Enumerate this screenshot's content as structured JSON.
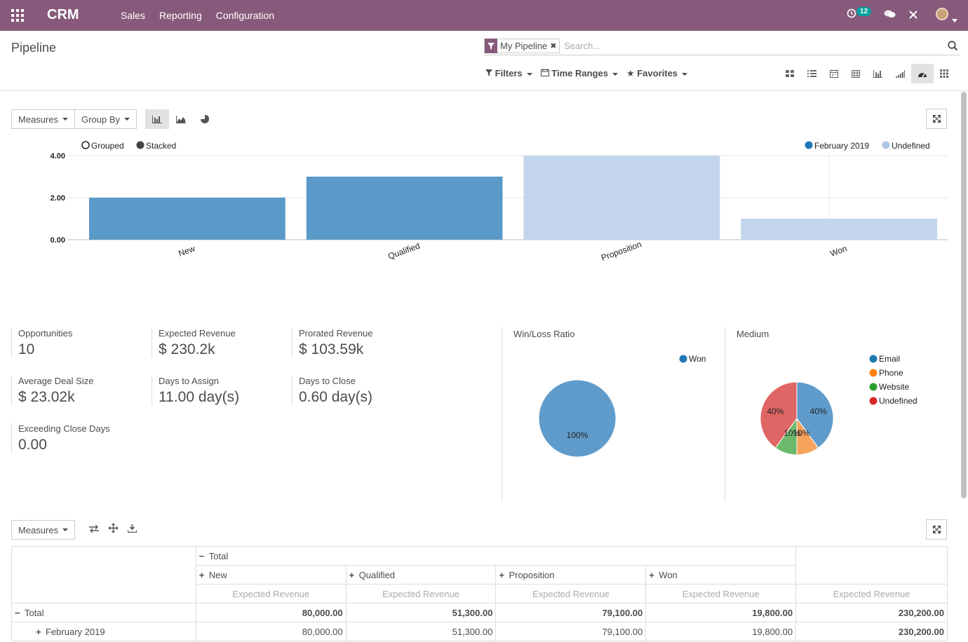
{
  "navbar": {
    "brand": "CRM",
    "menu": [
      "Sales",
      "Reporting",
      "Configuration"
    ],
    "activity_count": "12"
  },
  "control_panel": {
    "title": "Pipeline",
    "facet_label": "My Pipeline",
    "search_placeholder": "Search...",
    "filters_label": "Filters",
    "time_ranges_label": "Time Ranges",
    "favorites_label": "Favorites"
  },
  "graph": {
    "measures_label": "Measures",
    "group_by_label": "Group By",
    "mode_grouped": "Grouped",
    "mode_stacked": "Stacked"
  },
  "chart_data": {
    "type": "bar",
    "categories": [
      "New",
      "Qualified",
      "Proposition",
      "Won"
    ],
    "series": [
      {
        "name": "February 2019",
        "values": [
          2,
          3,
          0,
          0
        ],
        "color": "#5a9ac8"
      },
      {
        "name": "Undefined",
        "values": [
          0,
          0,
          4,
          1
        ],
        "color": "#c2d5ec"
      }
    ],
    "y_ticks": [
      "4.00",
      "2.00",
      "0.00"
    ],
    "ylim": [
      0,
      4
    ],
    "legend": "top-right"
  },
  "stats": {
    "opportunities": {
      "label": "Opportunities",
      "value": "10"
    },
    "expected_revenue": {
      "label": "Expected Revenue",
      "value": "$ 230.2k"
    },
    "prorated_revenue": {
      "label": "Prorated Revenue",
      "value": "$ 103.59k"
    },
    "avg_deal": {
      "label": "Average Deal Size",
      "value": "$ 23.02k"
    },
    "days_assign": {
      "label": "Days to Assign",
      "value": "11.00 day(s)"
    },
    "days_close": {
      "label": "Days to Close",
      "value": "0.60 day(s)"
    },
    "exceeding": {
      "label": "Exceeding Close Days",
      "value": "0.00"
    }
  },
  "winloss": {
    "title": "Win/Loss Ratio",
    "legend": [
      {
        "name": "Won",
        "color": "#1f77b4"
      }
    ],
    "slice_label": "100%",
    "values": [
      100
    ]
  },
  "medium": {
    "title": "Medium",
    "legend": [
      {
        "name": "Email",
        "color": "#1f77b4"
      },
      {
        "name": "Phone",
        "color": "#ff7f0e"
      },
      {
        "name": "Website",
        "color": "#2ca02c"
      },
      {
        "name": "Undefined",
        "color": "#d62728"
      }
    ],
    "values": [
      40,
      10,
      10,
      40
    ],
    "labels": [
      "40%",
      "10%",
      "10%",
      "40%"
    ]
  },
  "pivot": {
    "measures_label": "Measures",
    "total": "Total",
    "columns": [
      "New",
      "Qualified",
      "Proposition",
      "Won"
    ],
    "measure": "Expected Revenue",
    "rows": [
      {
        "label": "Total",
        "values": [
          "80,000.00",
          "51,300.00",
          "79,100.00",
          "19,800.00",
          "230,200.00"
        ]
      },
      {
        "label": "February 2019",
        "values": [
          "80,000.00",
          "51,300.00",
          "79,100.00",
          "19,800.00",
          "230,200.00"
        ]
      }
    ]
  }
}
